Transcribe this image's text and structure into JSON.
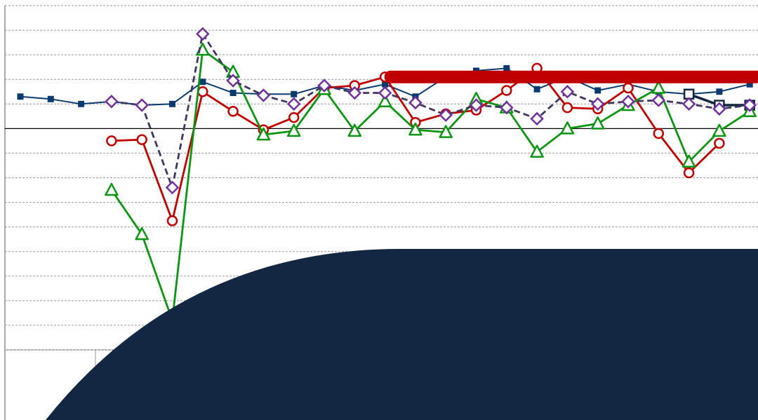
{
  "chart_data": {
    "type": "line",
    "title": "",
    "xlabel": "",
    "ylabel": "",
    "x": [
      1,
      2,
      3,
      4,
      5,
      6,
      7,
      8,
      9,
      10,
      11,
      12,
      13,
      14,
      15,
      16,
      17,
      18,
      19,
      20,
      21,
      22,
      23,
      24,
      25
    ],
    "ylim": [
      -9,
      5
    ],
    "grid": true,
    "zero_line": true,
    "series": [
      {
        "color": "#0b3b6e",
        "style": "solid-thin",
        "marker": "square-small",
        "values": [
          1.3,
          1.2,
          1.0,
          1.1,
          0.95,
          1.0,
          1.9,
          1.45,
          1.4,
          1.4,
          1.75,
          1.55,
          1.8,
          1.3,
          2.1,
          2.35,
          2.45,
          1.6,
          2.1,
          1.55,
          1.8,
          1.5,
          1.4,
          1.5,
          1.8
        ]
      },
      {
        "color": "#142640",
        "style": "solid-thick",
        "marker": "square-hollow",
        "values": [
          null,
          null,
          null,
          null,
          null,
          null,
          null,
          null,
          null,
          null,
          null,
          null,
          null,
          null,
          null,
          null,
          null,
          null,
          null,
          null,
          null,
          null,
          1.4,
          0.95,
          0.95
        ]
      },
      {
        "color": "#c00000",
        "style": "solid",
        "marker": "circle-hollow",
        "values": [
          null,
          null,
          null,
          -0.5,
          -0.45,
          -3.75,
          1.5,
          0.7,
          -0.05,
          0.45,
          1.65,
          1.75,
          2.1,
          0.25,
          0.6,
          0.75,
          1.55,
          2.45,
          0.85,
          0.8,
          1.65,
          -0.2,
          -1.8,
          -0.6,
          null
        ]
      },
      {
        "color": "#0d9413",
        "style": "solid",
        "marker": "triangle-hollow",
        "values": [
          null,
          null,
          null,
          -2.5,
          -4.3,
          -7.8,
          3.2,
          2.3,
          -0.25,
          -0.1,
          1.6,
          -0.1,
          1.1,
          -0.05,
          -0.15,
          1.2,
          0.85,
          -0.95,
          0.0,
          0.2,
          0.95,
          1.65,
          -1.35,
          -0.1,
          0.7
        ]
      },
      {
        "color": "#40365e",
        "style": "dashed",
        "marker": "diamond-hollow",
        "values": [
          null,
          null,
          null,
          1.1,
          0.95,
          -2.4,
          3.85,
          1.95,
          1.35,
          1.0,
          1.75,
          1.45,
          1.45,
          1.05,
          0.55,
          0.95,
          0.85,
          0.4,
          1.5,
          1.0,
          1.1,
          1.15,
          1.0,
          0.8,
          0.95
        ]
      },
      {
        "color": "#c00000",
        "style": "thick-bar",
        "marker": "none",
        "values": [
          null,
          null,
          null,
          null,
          null,
          null,
          null,
          null,
          null,
          null,
          null,
          null,
          2.1,
          2.1,
          2.1,
          2.1,
          2.1,
          2.1,
          2.1,
          2.1,
          2.1,
          2.1,
          2.1,
          2.1,
          2.1
        ]
      }
    ]
  },
  "overlay": {
    "color": "#132742"
  }
}
